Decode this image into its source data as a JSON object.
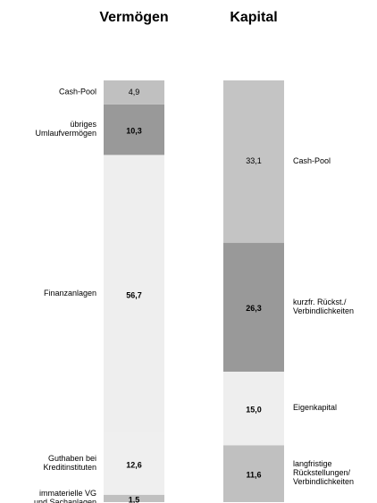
{
  "chart_data": [
    {
      "type": "stacked-bar",
      "title": "Vermögen",
      "ylim": [
        0,
        86
      ],
      "label_side": "left",
      "series": [
        {
          "name": "immaterielle VG\nund Sachanlagen",
          "color": "#c0c0c0",
          "values": [
            1.5
          ],
          "value_labels": [
            "1,5"
          ],
          "bold": true
        },
        {
          "name": "Guthaben bei\nKreditinstituten",
          "color": "#efefef",
          "values": [
            12.6
          ],
          "value_labels": [
            "12,6"
          ],
          "bold": true
        },
        {
          "name": "Finanzanlagen",
          "color": "#eeeeee",
          "values": [
            56.7
          ],
          "value_labels": [
            "56,7"
          ],
          "bold": true
        },
        {
          "name": "übriges\nUmlaufvermögen",
          "color": "#999999",
          "values": [
            10.3
          ],
          "value_labels": [
            "10,3"
          ],
          "bold": true
        },
        {
          "name": "Cash-Pool",
          "color": "#c0c0c0",
          "values": [
            4.9
          ],
          "value_labels": [
            "4,9"
          ],
          "bold": false
        }
      ]
    },
    {
      "type": "stacked-bar",
      "title": "Kapital",
      "ylim": [
        0,
        86
      ],
      "label_side": "right",
      "series": [
        {
          "name": "langfristige\nRückstellungen/\nVerbindlichkeiten",
          "color": "#c0c0c0",
          "values": [
            11.6
          ],
          "value_labels": [
            "11,6"
          ],
          "bold": true
        },
        {
          "name": "Eigenkapital",
          "color": "#eeeeee",
          "values": [
            15.0
          ],
          "value_labels": [
            "15,0"
          ],
          "bold": true
        },
        {
          "name": "kurzfr. Rückst./\nVerbindlichkeiten",
          "color": "#999999",
          "values": [
            26.3
          ],
          "value_labels": [
            "26,3"
          ],
          "bold": true
        },
        {
          "name": "Cash-Pool",
          "color": "#c4c4c4",
          "values": [
            33.1
          ],
          "value_labels": [
            "33,1"
          ],
          "bold": false
        }
      ]
    }
  ]
}
